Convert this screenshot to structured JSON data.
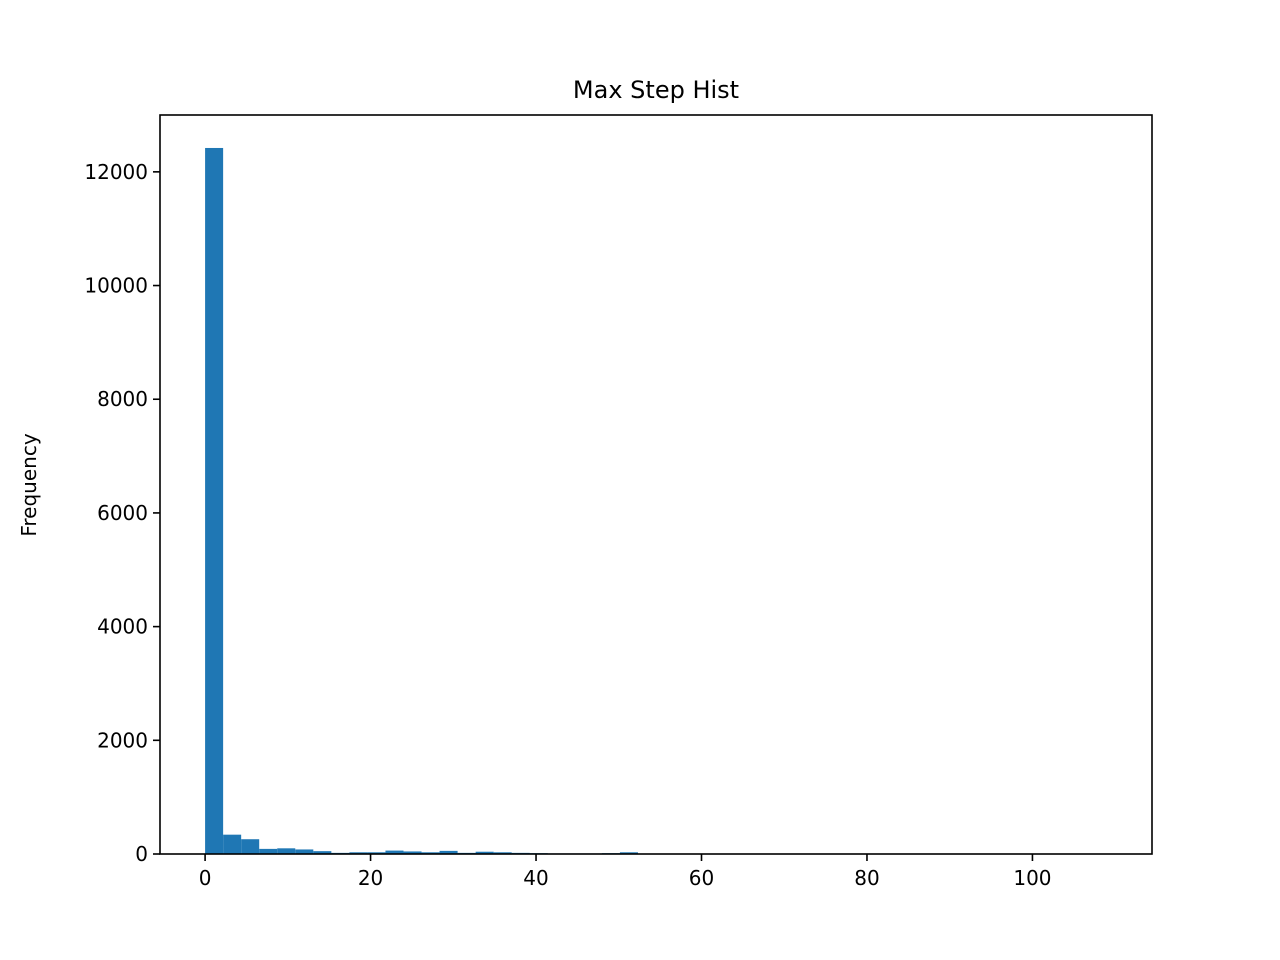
{
  "chart_data": {
    "type": "bar",
    "title": "Max Step Hist",
    "xlabel": "",
    "ylabel": "Frequency",
    "xlim": [
      -5.45,
      114.45
    ],
    "ylim": [
      0,
      13000
    ],
    "xticks": [
      0,
      20,
      40,
      60,
      80,
      100
    ],
    "yticks": [
      0,
      2000,
      4000,
      6000,
      8000,
      10000,
      12000
    ],
    "grid": false,
    "bar_color": "#1f77b4",
    "bins": {
      "start": 0,
      "width": 2.18,
      "count": 50
    },
    "values": [
      12420,
      340,
      260,
      90,
      100,
      80,
      50,
      20,
      30,
      30,
      60,
      45,
      30,
      55,
      20,
      40,
      30,
      20,
      15,
      10,
      10,
      10,
      15,
      30,
      5,
      5,
      5,
      5,
      5,
      5,
      5,
      5,
      5,
      5,
      5,
      5,
      5,
      5,
      5,
      5,
      5,
      5,
      5,
      5,
      5,
      5,
      5,
      5,
      5,
      5
    ]
  }
}
